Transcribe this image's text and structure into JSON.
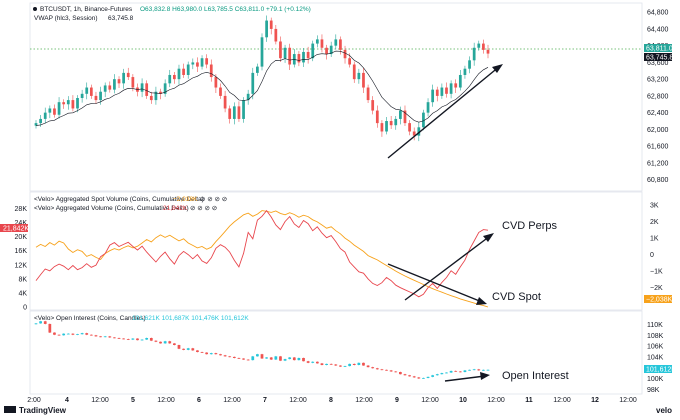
{
  "colors": {
    "up": "#26a69a",
    "down": "#ef5350",
    "vwap": "#131722",
    "spot": "#f7a21b",
    "perps": "#e8464d",
    "oi_up": "#26c6da",
    "oi_down": "#ef5350",
    "price_line": "#4caf50",
    "arrow": "#131722"
  },
  "header": {
    "symbol": "BTCUSDT, 1h, Binance-Futures",
    "ohlc": "O63,832.8 H63,980.0 L63,785.5 C63,811.0 +79.1 (+0.12%)",
    "vwap": "VWAP (hlc3, Session)",
    "vwap_value": "63,745.8"
  },
  "cvd_legend": {
    "spot_label": "<Velo> Aggregated Spot Volume (Coins, Cumulative Delta)",
    "spot_value": "−2,038K",
    "perps_label": "<Velo> Aggregated Volume (Coins, Cumulative Delta)",
    "perps_value": "21,842K"
  },
  "oi_legend": {
    "label": "<Velo> Open Interest (Coins, Candles)",
    "values": "101,621K 101,687K 101,476K 101,612K"
  },
  "annotations": {
    "perps": "CVD Perps",
    "spot": "CVD Spot",
    "oi": "Open Interest"
  },
  "badges": {
    "price_close": "63,811.0",
    "price_vwap": "63,745.8",
    "perps_left": "21,842K",
    "spot_right": "−2,038K",
    "oi_right": "101,612K"
  },
  "brand": {
    "left": "TradingView",
    "right": "velo"
  },
  "chart_data": [
    {
      "type": "candlestick",
      "title": "BTCUSDT, 1h, Binance-Futures",
      "x_ticks": [
        "2:00",
        "4",
        "12:00",
        "5",
        "12:00",
        "6",
        "12:00",
        "7",
        "12:00",
        "8",
        "12:00",
        "9",
        "12:00",
        "10",
        "12:00",
        "11",
        "12:00",
        "12",
        "12:00"
      ],
      "y_ticks": [
        "64,800",
        "64,400",
        "64,000",
        "63,600",
        "63,200",
        "62,800",
        "62,400",
        "62,000",
        "61,600",
        "61,200",
        "60,800"
      ],
      "ylim": [
        60600,
        64900
      ],
      "close_series": [
        62150,
        62250,
        62400,
        62500,
        62350,
        62650,
        62600,
        62700,
        62500,
        62750,
        62850,
        63000,
        62800,
        62700,
        62900,
        63050,
        62950,
        63200,
        63100,
        63350,
        63250,
        63000,
        62900,
        63100,
        62800,
        62700,
        62900,
        62850,
        63100,
        63300,
        63200,
        63450,
        63300,
        63550,
        63600,
        63500,
        63700,
        63550,
        63250,
        63000,
        62800,
        62500,
        62250,
        62550,
        62250,
        62700,
        62850,
        63350,
        63500,
        64200,
        64600,
        64400,
        64100,
        63700,
        63950,
        63550,
        63800,
        63600,
        63850,
        63700,
        64050,
        64150,
        63950,
        63800,
        64000,
        64150,
        63900,
        63700,
        63550,
        63200,
        63350,
        63000,
        62700,
        62450,
        62150,
        61950,
        62200,
        62100,
        62250,
        62450,
        62150,
        61950,
        61850,
        62050,
        62400,
        62650,
        62950,
        62800,
        63000,
        62850,
        63100,
        63000,
        63300,
        63450,
        63650,
        63950,
        64050,
        63900,
        63811
      ]
    },
    {
      "type": "line",
      "series": [
        {
          "name": "<Velo> Aggregated Spot Volume (Coins, Cumulative Delta)",
          "color": "#f7a21b",
          "values": [
            17000,
            17800,
            17200,
            18300,
            17600,
            18700,
            18200,
            16500,
            15500,
            16300,
            15800,
            14400,
            14900,
            14100,
            13500,
            15200,
            16000,
            16600,
            16200,
            16900,
            17400,
            16800,
            17300,
            18200,
            19200,
            18500,
            19700,
            20500,
            19800,
            20400,
            19600,
            18800,
            19400,
            18200,
            17500,
            16800,
            17200,
            16400,
            17000,
            18600,
            20000,
            21500,
            23000,
            24200,
            25200,
            26200,
            26700,
            25800,
            26400,
            27400,
            27200,
            26900,
            27300,
            26600,
            26200,
            26800,
            26300,
            25500,
            26100,
            25700,
            24800,
            24200,
            23300,
            22400,
            22800,
            21700,
            20800,
            19600,
            18700,
            17600,
            16700,
            15800,
            14600,
            14000,
            13400,
            12600,
            11800,
            11000,
            10200,
            9500,
            8800,
            8200,
            7600,
            7000,
            6400,
            5800,
            5200,
            4700,
            4200,
            3700,
            3200,
            2800,
            2300,
            1900,
            1500,
            1100,
            700,
            400,
            0
          ]
        },
        {
          "name": "<Velo> Aggregated Volume (Coins, Cumulative Delta)",
          "color": "#e8464d",
          "values": [
            7500,
            9200,
            10800,
            10300,
            11500,
            12200,
            11600,
            10600,
            11800,
            10600,
            11200,
            12300,
            11300,
            11900,
            14300,
            15200,
            17600,
            18300,
            17200,
            17800,
            18400,
            17200,
            16200,
            17300,
            15600,
            14200,
            12800,
            14400,
            15600,
            13700,
            12200,
            14600,
            15800,
            14900,
            13700,
            14900,
            13100,
            12400,
            14000,
            16700,
            17700,
            17000,
            15600,
            13300,
            11400,
            15300,
            21200,
            19400,
            24700,
            25800,
            27400,
            25600,
            23300,
            22000,
            24300,
            25700,
            23600,
            22600,
            24600,
            23700,
            21700,
            22800,
            21000,
            19700,
            20300,
            18600,
            16600,
            15600,
            12800,
            11400,
            10000,
            9600,
            8000,
            6700,
            6100,
            6900,
            8400,
            7500,
            6200,
            5500,
            4900,
            4300,
            3700,
            2900,
            3600,
            5500,
            6700,
            5300,
            7000,
            8400,
            10300,
            9300,
            11400,
            13300,
            16400,
            18800,
            21200,
            22000,
            21842
          ]
        }
      ],
      "x_ticks": [
        "2:00",
        "4",
        "12:00",
        "5",
        "12:00",
        "6",
        "12:00",
        "7",
        "12:00",
        "8",
        "12:00",
        "9",
        "12:00",
        "10",
        "12:00",
        "11",
        "12:00",
        "12",
        "12:00"
      ],
      "y_ticks_left": [
        "28K",
        "24K",
        "20K",
        "16K",
        "12K",
        "8K",
        "4K",
        "0"
      ],
      "y_ticks_right": [
        "3K",
        "2K",
        "1K",
        "0",
        "−1K",
        "−2K"
      ],
      "ylim": [
        0,
        29000
      ]
    },
    {
      "type": "candlestick",
      "title": "<Velo> Open Interest (Coins, Candles)",
      "close_series": [
        110200,
        110600,
        110100,
        108500,
        108100,
        108000,
        108300,
        108300,
        108100,
        108200,
        108400,
        108100,
        108000,
        107800,
        107700,
        107800,
        107600,
        107500,
        107400,
        107300,
        107200,
        107400,
        107100,
        107200,
        107500,
        107000,
        106800,
        106500,
        106900,
        106500,
        106200,
        105500,
        105300,
        105600,
        105200,
        104900,
        104800,
        104500,
        104700,
        104500,
        104300,
        104100,
        104000,
        103800,
        103700,
        103500,
        103400,
        104100,
        104500,
        103700,
        103900,
        103500,
        104100,
        103300,
        103600,
        103900,
        103400,
        103800,
        103200,
        102900,
        103100,
        102800,
        102500,
        102700,
        102600,
        102400,
        102200,
        102300,
        102700,
        102500,
        102900,
        102400,
        102100,
        101900,
        101700,
        101600,
        101500,
        101300,
        101200,
        100800,
        100600,
        100400,
        100200,
        100000,
        100100,
        100300,
        100600,
        100800,
        101000,
        101100,
        101400,
        101300,
        101200,
        101500,
        101600,
        101700,
        101500,
        101600,
        101612
      ],
      "y_ticks": [
        "110K",
        "108K",
        "106K",
        "104K",
        "102K",
        "100K",
        "98K"
      ],
      "ylim": [
        97500,
        111200
      ]
    }
  ]
}
